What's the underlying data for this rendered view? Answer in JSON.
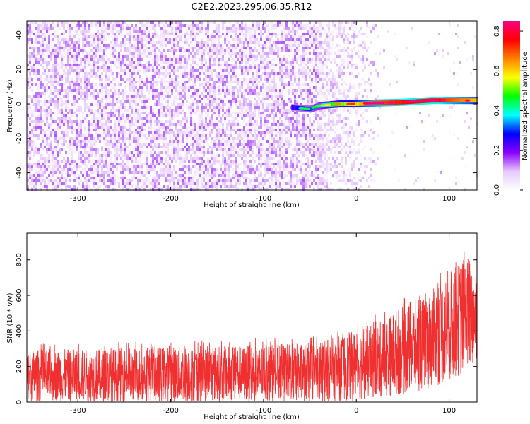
{
  "title": "C2E2.2023.295.06.35.R12",
  "chart_data": [
    {
      "type": "heatmap",
      "xlabel": "Height of straight line (km)",
      "ylabel": "Frequency (Hz)",
      "xlim": [
        -355,
        130
      ],
      "ylim": [
        -50,
        48
      ],
      "x_ticks": [
        -300,
        -200,
        -100,
        0,
        100
      ],
      "x_tick_labels": [
        "-300",
        "-200",
        "-100",
        "0",
        "100"
      ],
      "y_ticks": [
        -40,
        -20,
        0,
        20,
        40
      ],
      "y_tick_labels": [
        "-40",
        "-20",
        "0",
        "20",
        "40"
      ],
      "colorbar": {
        "label": "Normalized spectral amplitude",
        "range": [
          0,
          0.85
        ],
        "ticks": [
          0,
          0.2,
          0.4,
          0.6,
          0.8
        ],
        "tick_labels": [
          "0.0",
          "0.2",
          "0.4",
          "0.6",
          "0.8"
        ],
        "colormap": [
          "#ffffff",
          "#e6c8ff",
          "#8a00ff",
          "#0000ff",
          "#00ffff",
          "#00ff00",
          "#ffff00",
          "#ff8000",
          "#ff0000",
          "#ff0080"
        ]
      },
      "features": {
        "noise_region_x": [
          -355,
          -40
        ],
        "noise_amplitude_range": [
          0.0,
          0.15
        ],
        "signal_trace": {
          "x": [
            -70,
            -50,
            -40,
            -20,
            0,
            20,
            50,
            80,
            100,
            130
          ],
          "frequency": [
            -2,
            -3,
            -1,
            0,
            0,
            0.5,
            1,
            2,
            2,
            2
          ],
          "amplitude": [
            0.25,
            0.3,
            0.35,
            0.5,
            0.6,
            0.7,
            0.75,
            0.8,
            0.7,
            0.6
          ]
        }
      },
      "grid": false
    },
    {
      "type": "line",
      "xlabel": "Height of straight line (km)",
      "ylabel": "SNR (10 * v/v)",
      "xlim": [
        -355,
        130
      ],
      "ylim": [
        0,
        950
      ],
      "x_ticks": [
        -300,
        -200,
        -100,
        0,
        100
      ],
      "x_tick_labels": [
        "-300",
        "-200",
        "-100",
        "0",
        "100"
      ],
      "y_ticks": [
        0,
        200,
        400,
        600,
        800
      ],
      "y_tick_labels": [
        "0",
        "200",
        "400",
        "600",
        "800"
      ],
      "color": "#f03030",
      "envelope": {
        "x": [
          -355,
          -300,
          -250,
          -200,
          -150,
          -100,
          -50,
          -25,
          0,
          25,
          50,
          75,
          100,
          120,
          130
        ],
        "low": [
          20,
          20,
          20,
          20,
          20,
          20,
          20,
          25,
          30,
          50,
          70,
          100,
          150,
          200,
          250
        ],
        "high": [
          330,
          330,
          340,
          350,
          350,
          360,
          370,
          400,
          450,
          500,
          600,
          650,
          800,
          900,
          850
        ]
      },
      "grid": false
    }
  ]
}
